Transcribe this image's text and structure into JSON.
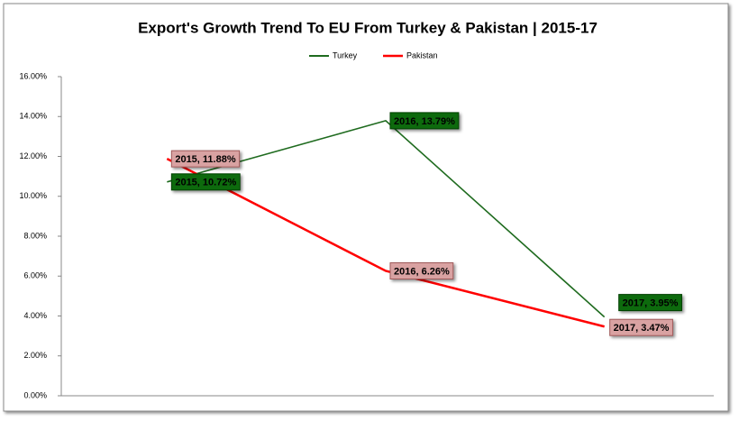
{
  "chart_data": {
    "type": "line",
    "title": "Export's Growth Trend To EU From Turkey & Pakistan | 2015-17",
    "categories": [
      "2015",
      "2016",
      "2017"
    ],
    "series": [
      {
        "name": "Turkey",
        "color": "#1f6b1f",
        "values": [
          10.72,
          13.79,
          3.95
        ],
        "value_labels": [
          "2015, 10.72%",
          "2016, 13.79%",
          "2017, 3.95%"
        ]
      },
      {
        "name": "Pakistan",
        "color": "#ff0000",
        "values": [
          11.88,
          6.26,
          3.47
        ],
        "value_labels": [
          "2015, 11.88%",
          "2016, 6.26%",
          "2017, 3.47%"
        ]
      }
    ],
    "ylim": [
      0,
      16
    ],
    "yticks": [
      {
        "value": 0,
        "label": "0.00%"
      },
      {
        "value": 2,
        "label": "2.00%"
      },
      {
        "value": 4,
        "label": "4.00%"
      },
      {
        "value": 6,
        "label": "6.00%"
      },
      {
        "value": 8,
        "label": "8.00%"
      },
      {
        "value": 10,
        "label": "10.00%"
      },
      {
        "value": 12,
        "label": "12.00%"
      },
      {
        "value": 14,
        "label": "14.00%"
      },
      {
        "value": 16,
        "label": "16.00%"
      }
    ],
    "grid": false,
    "legend": "top"
  }
}
